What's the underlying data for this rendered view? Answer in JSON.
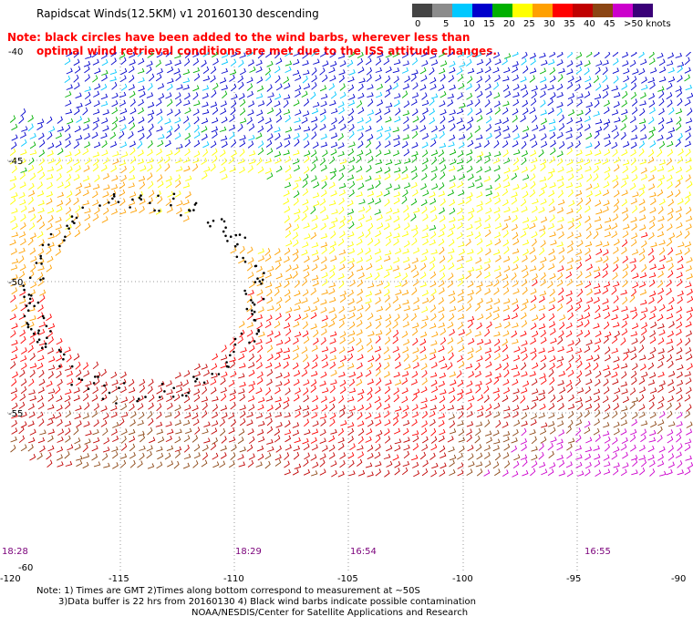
{
  "title": "Rapidscat Winds(12.5KM) v1 20160130 descending",
  "note": {
    "line1": "Note: black circles have been added to the wind barbs, wherever less than",
    "line2": "optimal wind retrieval conditions are met due to the ISS attitude changes."
  },
  "scale": {
    "labels": [
      "0",
      "5",
      "10",
      "15",
      "20",
      "25",
      "30",
      "35",
      "40",
      "45",
      ">50 knots"
    ],
    "colors": [
      "#444444",
      "#8c8c8c",
      "#00c8ff",
      "#0000cc",
      "#00b000",
      "#ffff00",
      "#ffa000",
      "#ff0000",
      "#c00000",
      "#8b4513",
      "#cc00cc",
      "#3a0078"
    ]
  },
  "axes": {
    "lat_labels": [
      "-40",
      "-45",
      "-50",
      "-55",
      "-60"
    ],
    "lon_labels": [
      "-120",
      "-115",
      "-110",
      "-105",
      "-100",
      "-95",
      "-90"
    ]
  },
  "times": [
    "18:28",
    "18:29",
    "16:54",
    "16:55"
  ],
  "footer": {
    "line1": "Note: 1) Times are GMT 2)Times along bottom correspond to measurement at ~50S",
    "line2": "3)Data buffer is 22 hrs from 20160130 4) Black wind barbs indicate possible contamination",
    "line3": "NOAA/NESDIS/Center for Satellite Applications and Research"
  }
}
